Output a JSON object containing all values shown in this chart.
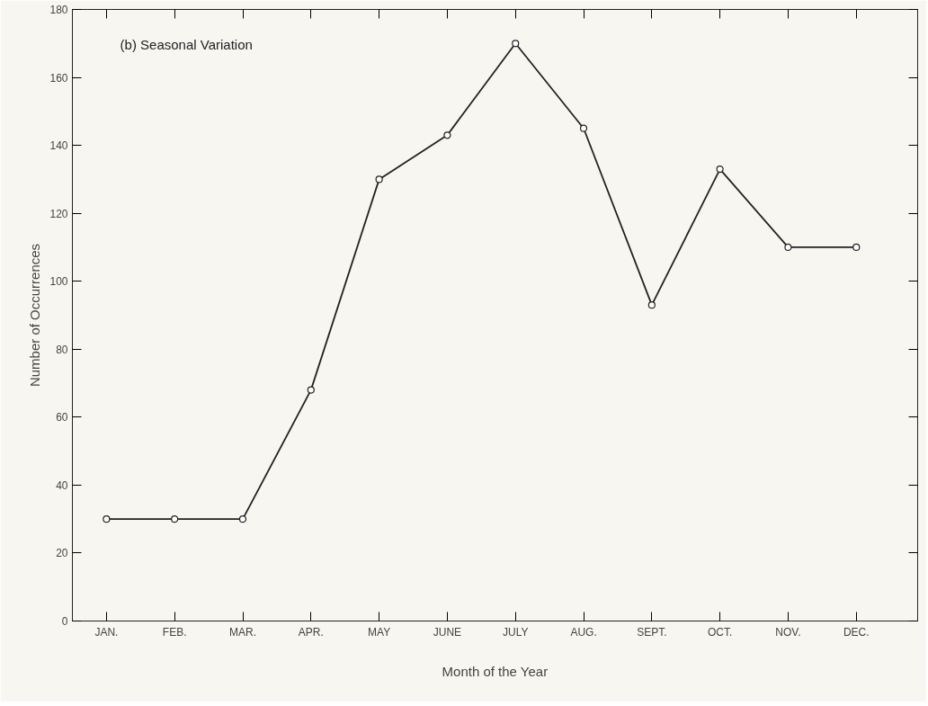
{
  "chart_data": {
    "type": "line",
    "title": "(b) Seasonal Variation",
    "xlabel": "Month of the Year",
    "ylabel": "Number of Occurrences",
    "categories": [
      "JAN.",
      "FEB.",
      "MAR.",
      "APR.",
      "MAY",
      "JUNE",
      "JULY",
      "AUG.",
      "SEPT.",
      "OCT.",
      "NOV.",
      "DEC."
    ],
    "series": [
      {
        "color": "#222222",
        "values": [
          30,
          30,
          30,
          68,
          130,
          143,
          170,
          145,
          93,
          133,
          110,
          110
        ]
      }
    ],
    "ylim": [
      0,
      180
    ],
    "yticks": [
      0,
      20,
      40,
      60,
      80,
      100,
      120,
      140,
      160,
      180
    ],
    "grid": false,
    "marker": "circle",
    "line_style": "solid"
  }
}
